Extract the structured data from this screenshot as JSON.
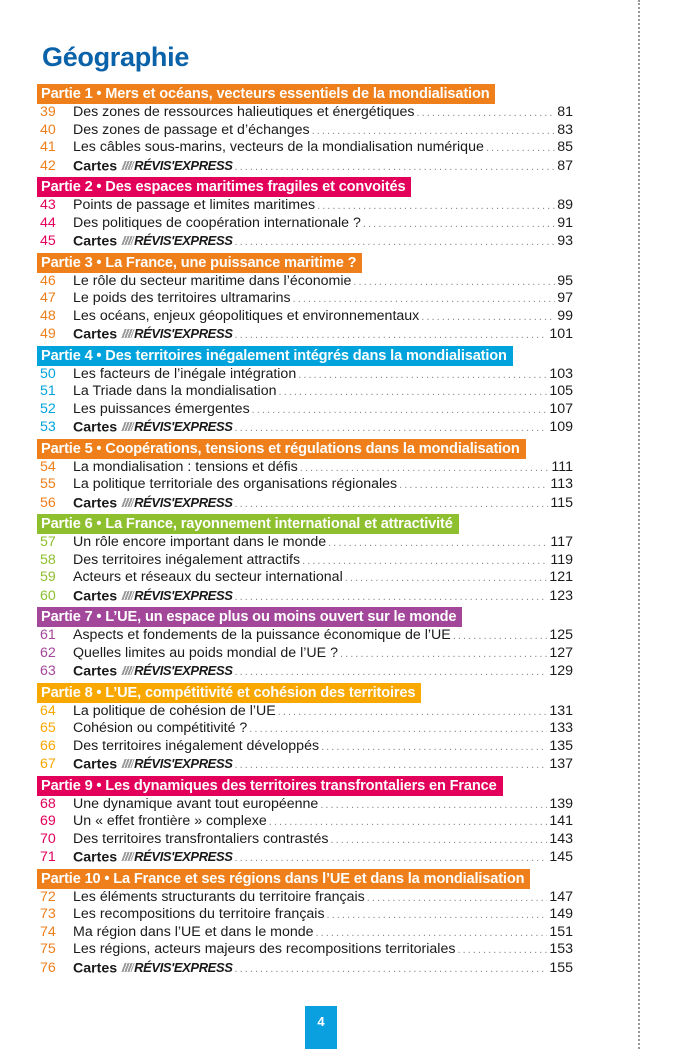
{
  "title": "Géographie",
  "page_number": "4",
  "cartes_label": "Cartes",
  "logo_text": "RÉVIS'EXPRESS",
  "parts": [
    {
      "label": "Partie 1 • Mers et océans, vecteurs essentiels de la mondialisation",
      "color": "#ee7f1b",
      "entries": [
        {
          "num": "39",
          "title": "Des zones de ressources halieutiques et énergétiques",
          "page": "81"
        },
        {
          "num": "40",
          "title": "Des zones de passage et d’échanges",
          "page": "83"
        },
        {
          "num": "41",
          "title": "Les câbles sous-marins, vecteurs de la mondialisation numérique",
          "page": "85"
        },
        {
          "num": "42",
          "title": "",
          "cartes": true,
          "page": "87"
        }
      ]
    },
    {
      "label": "Partie 2 • Des espaces maritimes fragiles et convoités",
      "color": "#e2005a",
      "entries": [
        {
          "num": "43",
          "title": "Points de passage et limites maritimes",
          "page": "89"
        },
        {
          "num": "44",
          "title": "Des politiques de coopération internationale ?",
          "page": "91"
        },
        {
          "num": "45",
          "title": "",
          "cartes": true,
          "page": "93"
        }
      ]
    },
    {
      "label": "Partie 3 • La France, une puissance maritime ?",
      "color": "#ee7f1b",
      "entries": [
        {
          "num": "46",
          "title": "Le rôle du secteur maritime dans l’économie",
          "page": "95"
        },
        {
          "num": "47",
          "title": "Le poids des territoires ultramarins",
          "page": "97"
        },
        {
          "num": "48",
          "title": "Les océans, enjeux géopolitiques et environnementaux",
          "page": "99"
        },
        {
          "num": "49",
          "title": "",
          "cartes": true,
          "page": "101"
        }
      ]
    },
    {
      "label": "Partie 4 • Des territoires inégalement intégrés dans la mondialisation",
      "color": "#00a3dc",
      "entries": [
        {
          "num": "50",
          "title": "Les facteurs de l’inégale intégration",
          "page": "103"
        },
        {
          "num": "51",
          "title": "La Triade dans la mondialisation",
          "page": "105"
        },
        {
          "num": "52",
          "title": "Les puissances émergentes",
          "page": "107"
        },
        {
          "num": "53",
          "title": "",
          "cartes": true,
          "page": "109"
        }
      ]
    },
    {
      "label": "Partie 5 • Coopérations, tensions et régulations dans la mondialisation",
      "color": "#ee7f1b",
      "entries": [
        {
          "num": "54",
          "title": "La mondialisation : tensions et défis",
          "page": "111"
        },
        {
          "num": "55",
          "title": "La politique territoriale des organisations régionales",
          "page": "113"
        },
        {
          "num": "56",
          "title": "",
          "cartes": true,
          "page": "115"
        }
      ]
    },
    {
      "label": "Partie 6 • La France, rayonnement international et attractivité",
      "color": "#8dbf2e",
      "entries": [
        {
          "num": "57",
          "title": "Un rôle encore important dans le monde",
          "page": "117"
        },
        {
          "num": "58",
          "title": "Des territoires inégalement attractifs",
          "page": "119"
        },
        {
          "num": "59",
          "title": "Acteurs et réseaux du secteur international",
          "page": "121"
        },
        {
          "num": "60",
          "title": "",
          "cartes": true,
          "page": "123"
        }
      ]
    },
    {
      "label": "Partie 7 • L’UE, un espace plus ou moins ouvert sur le monde",
      "color": "#a3479a",
      "entries": [
        {
          "num": "61",
          "title": "Aspects et fondements de la puissance économique de l’UE",
          "page": "125"
        },
        {
          "num": "62",
          "title": "Quelles limites au poids mondial de l’UE ?",
          "page": "127"
        },
        {
          "num": "63",
          "title": "",
          "cartes": true,
          "page": "129"
        }
      ]
    },
    {
      "label": "Partie 8 • L’UE, compétitivité et cohésion des territoires",
      "color": "#f9a800",
      "entries": [
        {
          "num": "64",
          "title": "La politique de cohésion de l’UE",
          "page": "131"
        },
        {
          "num": "65",
          "title": "Cohésion ou compétitivité ?",
          "page": "133"
        },
        {
          "num": "66",
          "title": "Des territoires inégalement développés",
          "page": "135"
        },
        {
          "num": "67",
          "title": "",
          "cartes": true,
          "page": "137"
        }
      ]
    },
    {
      "label": "Partie 9 • Les dynamiques des territoires transfrontaliers en France",
      "color": "#e2005a",
      "entries": [
        {
          "num": "68",
          "title": "Une dynamique avant tout européenne",
          "page": "139"
        },
        {
          "num": "69",
          "title": "Un « effet frontière » complexe",
          "page": "141"
        },
        {
          "num": "70",
          "title": "Des territoires transfrontaliers contrastés",
          "page": "143"
        },
        {
          "num": "71",
          "title": "",
          "cartes": true,
          "page": "145"
        }
      ]
    },
    {
      "label": "Partie 10 • La France et ses régions dans l’UE et dans la mondialisation",
      "color": "#ee7f1b",
      "entries": [
        {
          "num": "72",
          "title": "Les éléments structurants du territoire français",
          "page": "147"
        },
        {
          "num": "73",
          "title": "Les recompositions du territoire français",
          "page": "149"
        },
        {
          "num": "74",
          "title": "Ma région dans l’UE et dans le monde",
          "page": "151"
        },
        {
          "num": "75",
          "title": "Les régions, acteurs majeurs des recompositions territoriales",
          "page": "153"
        },
        {
          "num": "76",
          "title": "",
          "cartes": true,
          "page": "155"
        }
      ]
    }
  ]
}
